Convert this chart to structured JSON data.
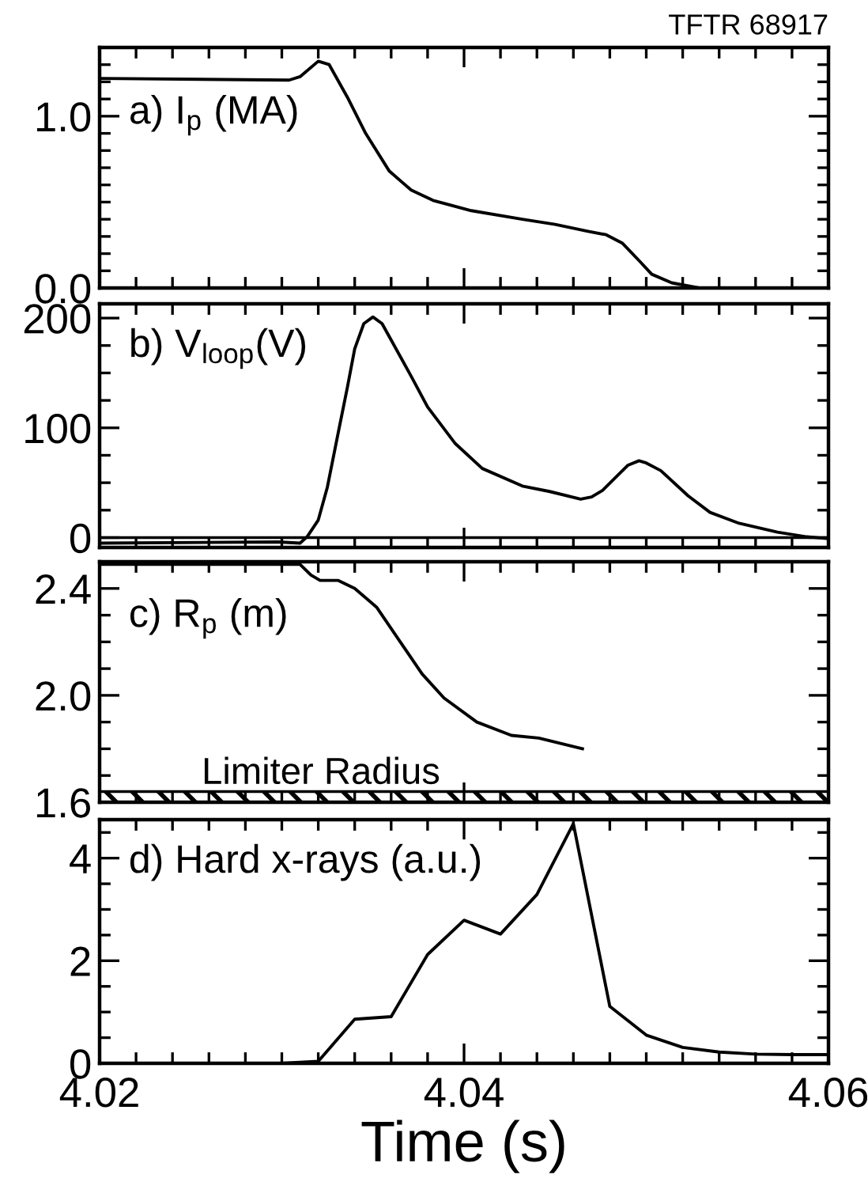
{
  "chart_data": [
    {
      "type": "line",
      "title": "TFTR 68917",
      "annotations": [
        "a) I$_{p}$ (MA)"
      ],
      "tick_labels": "y",
      "xlim": [
        4.02,
        4.06
      ],
      "ylim": [
        0,
        1.4
      ],
      "xticks": [
        4.02,
        4.04,
        4.06,
        {
          "value": 4.022,
          "label": null
        },
        {
          "value": 4.024,
          "label": null
        },
        {
          "value": 4.026,
          "label": null
        },
        {
          "value": 4.028,
          "label": null
        },
        {
          "value": 4.03,
          "label": null
        },
        {
          "value": 4.032,
          "label": null
        },
        {
          "value": 4.034,
          "label": null
        },
        {
          "value": 4.036,
          "label": null
        },
        {
          "value": 4.038,
          "label": null
        },
        {
          "value": 4.042,
          "label": null
        },
        {
          "value": 4.044,
          "label": null
        },
        {
          "value": 4.046,
          "label": null
        },
        {
          "value": 4.048,
          "label": null
        },
        {
          "value": 4.05,
          "label": null
        },
        {
          "value": 4.052,
          "label": null
        },
        {
          "value": 4.054,
          "label": null
        },
        {
          "value": 4.056,
          "label": null
        },
        {
          "value": 4.058,
          "label": null
        }
      ],
      "yticks": [
        {
          "value": 0,
          "label": "0.0"
        },
        {
          "value": 1.0,
          "label": "1.0"
        },
        {
          "value": 0.1,
          "label": null
        },
        {
          "value": 0.2,
          "label": null
        },
        {
          "value": 0.3,
          "label": null
        },
        {
          "value": 0.4,
          "label": null
        },
        {
          "value": 0.5,
          "label": null
        },
        {
          "value": 0.6,
          "label": null
        },
        {
          "value": 0.7,
          "label": null
        },
        {
          "value": 0.8,
          "label": null
        },
        {
          "value": 0.9,
          "label": null
        },
        {
          "value": 1.1,
          "label": null
        },
        {
          "value": 1.2,
          "label": null
        },
        {
          "value": 1.3,
          "label": null
        }
      ],
      "line_style": "solid",
      "marker": "none",
      "series": [
        {
          "color": "#000000",
          "x": [
            4.02,
            4.0304,
            4.031,
            4.032,
            4.0326,
            4.0336,
            4.0346,
            4.0359,
            4.0371,
            4.0383,
            4.0404,
            4.0432,
            4.045,
            4.0468,
            4.0478,
            4.0487,
            4.0496,
            4.0503,
            4.0514,
            4.0529,
            4.0572,
            4.06
          ],
          "values": [
            1.22,
            1.21,
            1.23,
            1.32,
            1.3,
            1.11,
            0.9,
            0.68,
            0.57,
            0.51,
            0.45,
            0.4,
            0.37,
            0.33,
            0.31,
            0.26,
            0.16,
            0.08,
            0.03,
            0.0,
            0.0,
            0.0
          ]
        }
      ]
    },
    {
      "type": "line",
      "annotations": [
        "b) V$_{loop}$(V)"
      ],
      "tick_labels": "y",
      "xlim": [
        4.02,
        4.06
      ],
      "ylim": [
        -9,
        213
      ],
      "xticks": [
        4.02,
        4.04,
        4.06,
        {
          "value": 4.022,
          "label": null
        },
        {
          "value": 4.024,
          "label": null
        },
        {
          "value": 4.026,
          "label": null
        },
        {
          "value": 4.028,
          "label": null
        },
        {
          "value": 4.03,
          "label": null
        },
        {
          "value": 4.032,
          "label": null
        },
        {
          "value": 4.034,
          "label": null
        },
        {
          "value": 4.036,
          "label": null
        },
        {
          "value": 4.038,
          "label": null
        },
        {
          "value": 4.042,
          "label": null
        },
        {
          "value": 4.044,
          "label": null
        },
        {
          "value": 4.046,
          "label": null
        },
        {
          "value": 4.048,
          "label": null
        },
        {
          "value": 4.05,
          "label": null
        },
        {
          "value": 4.052,
          "label": null
        },
        {
          "value": 4.054,
          "label": null
        },
        {
          "value": 4.056,
          "label": null
        },
        {
          "value": 4.058,
          "label": null
        }
      ],
      "yticks": [
        0,
        100,
        200,
        {
          "value": 25,
          "label": null
        },
        {
          "value": 50,
          "label": null
        },
        {
          "value": 75,
          "label": null
        },
        {
          "value": 125,
          "label": null
        },
        {
          "value": 150,
          "label": null
        },
        {
          "value": 175,
          "label": null
        }
      ],
      "ref_lines": [
        {
          "axis": "y",
          "value": 0,
          "color": "#000000"
        }
      ],
      "line_style": "solid",
      "marker": "none",
      "series": [
        {
          "color": "#000000",
          "x": [
            4.02,
            4.0298,
            4.031,
            4.0314,
            4.032,
            4.0325,
            4.0331,
            4.0336,
            4.034,
            4.0345,
            4.035,
            4.0355,
            4.036,
            4.0371,
            4.038,
            4.0395,
            4.041,
            4.0432,
            4.0447,
            4.0464,
            4.047,
            4.0476,
            4.049,
            4.0496,
            4.05,
            4.0508,
            4.0523,
            4.0535,
            4.0551,
            4.0572,
            4.0587,
            4.06
          ],
          "values": [
            -5,
            -4,
            -5,
            1,
            16,
            46,
            96,
            137,
            172,
            195,
            201,
            195,
            180,
            147,
            119,
            86,
            63,
            47,
            42,
            35,
            37,
            43,
            66,
            70,
            68,
            61,
            38,
            23,
            13,
            5,
            1,
            -1
          ]
        }
      ]
    },
    {
      "type": "line",
      "annotations": [
        "c) R$_{p}$ (m)"
      ],
      "tick_labels": "y",
      "xlim": [
        4.02,
        4.06
      ],
      "ylim": [
        1.6,
        2.5
      ],
      "xticks": [
        4.02,
        4.04,
        4.06,
        {
          "value": 4.022,
          "label": null
        },
        {
          "value": 4.024,
          "label": null
        },
        {
          "value": 4.026,
          "label": null
        },
        {
          "value": 4.028,
          "label": null
        },
        {
          "value": 4.03,
          "label": null
        },
        {
          "value": 4.032,
          "label": null
        },
        {
          "value": 4.034,
          "label": null
        },
        {
          "value": 4.036,
          "label": null
        },
        {
          "value": 4.038,
          "label": null
        },
        {
          "value": 4.042,
          "label": null
        },
        {
          "value": 4.044,
          "label": null
        },
        {
          "value": 4.046,
          "label": null
        },
        {
          "value": 4.048,
          "label": null
        },
        {
          "value": 4.05,
          "label": null
        },
        {
          "value": 4.052,
          "label": null
        },
        {
          "value": 4.054,
          "label": null
        },
        {
          "value": 4.056,
          "label": null
        },
        {
          "value": 4.058,
          "label": null
        }
      ],
      "yticks": [
        {
          "value": 1.6,
          "label": "1.6"
        },
        {
          "value": 2.0,
          "label": "2.0"
        },
        {
          "value": 2.4,
          "label": "2.4"
        },
        {
          "value": 1.7,
          "label": null
        },
        {
          "value": 1.8,
          "label": null
        },
        {
          "value": 1.9,
          "label": null
        },
        {
          "value": 2.1,
          "label": null
        },
        {
          "value": 2.2,
          "label": null
        },
        {
          "value": 2.3,
          "label": null
        }
      ],
      "bands": [
        {
          "axis": "y",
          "from": 1.6,
          "to": 1.64,
          "label": "Limiter Radius",
          "color": "#000000"
        }
      ],
      "line_style": "solid",
      "marker": "none",
      "series": [
        {
          "color": "#000000",
          "x": [
            4.02,
            4.0304,
            4.031,
            4.0316,
            4.0321,
            4.0331,
            4.034,
            4.0352,
            4.0365,
            4.0377,
            4.0389,
            4.0407,
            4.0426,
            4.0441,
            4.0465
          ],
          "values": [
            2.49,
            2.49,
            2.49,
            2.45,
            2.43,
            2.43,
            2.4,
            2.33,
            2.2,
            2.08,
            1.99,
            1.9,
            1.85,
            1.84,
            1.8
          ]
        }
      ]
    },
    {
      "type": "line",
      "annotations": [
        "d) Hard x-rays (a.u.)"
      ],
      "xlabel": "Time (s)",
      "xlim": [
        4.02,
        4.06
      ],
      "ylim": [
        0,
        4.75
      ],
      "xticks": [
        4.02,
        4.04,
        4.06,
        {
          "value": 4.022,
          "label": null
        },
        {
          "value": 4.024,
          "label": null
        },
        {
          "value": 4.026,
          "label": null
        },
        {
          "value": 4.028,
          "label": null
        },
        {
          "value": 4.03,
          "label": null
        },
        {
          "value": 4.032,
          "label": null
        },
        {
          "value": 4.034,
          "label": null
        },
        {
          "value": 4.036,
          "label": null
        },
        {
          "value": 4.038,
          "label": null
        },
        {
          "value": 4.042,
          "label": null
        },
        {
          "value": 4.044,
          "label": null
        },
        {
          "value": 4.046,
          "label": null
        },
        {
          "value": 4.048,
          "label": null
        },
        {
          "value": 4.05,
          "label": null
        },
        {
          "value": 4.052,
          "label": null
        },
        {
          "value": 4.054,
          "label": null
        },
        {
          "value": 4.056,
          "label": null
        },
        {
          "value": 4.058,
          "label": null
        }
      ],
      "yticks": [
        0,
        2,
        4,
        {
          "value": 0.5,
          "label": null
        },
        {
          "value": 1,
          "label": null
        },
        {
          "value": 1.5,
          "label": null
        },
        {
          "value": 2.5,
          "label": null
        },
        {
          "value": 3,
          "label": null
        },
        {
          "value": 3.5,
          "label": null
        },
        {
          "value": 4.5,
          "label": null
        }
      ],
      "line_style": "solid",
      "marker": "none",
      "series": [
        {
          "color": "#000000",
          "x": [
            4.02,
            4.03,
            4.032,
            4.034,
            4.036,
            4.038,
            4.04,
            4.042,
            4.044,
            4.046,
            4.048,
            4.05,
            4.052,
            4.054,
            4.056,
            4.058,
            4.06
          ],
          "values": [
            0,
            0,
            0.04,
            0.86,
            0.91,
            2.12,
            2.79,
            2.52,
            3.29,
            4.67,
            1.11,
            0.55,
            0.31,
            0.22,
            0.18,
            0.17,
            0.17
          ]
        }
      ]
    }
  ]
}
